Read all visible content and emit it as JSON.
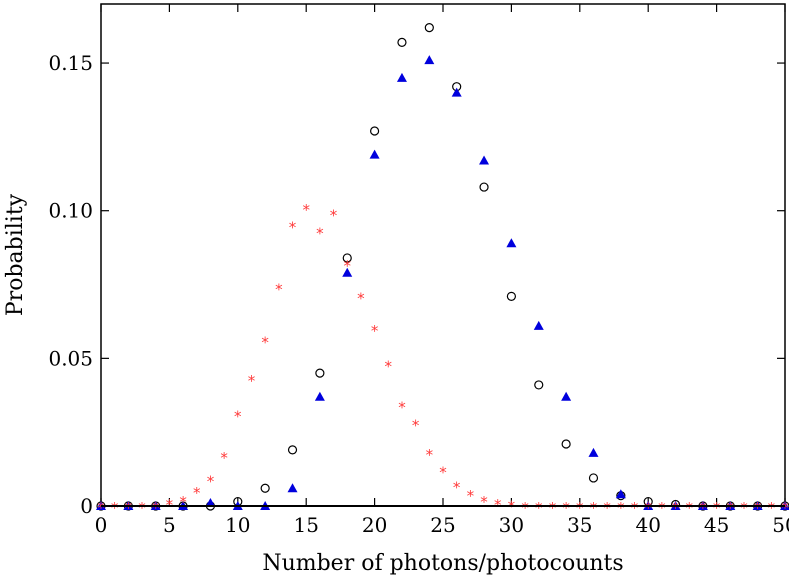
{
  "chart_data": {
    "type": "scatter",
    "title": "",
    "xlabel": "Number of photons/photocounts",
    "ylabel": "Probability",
    "xlim": [
      0,
      50
    ],
    "ylim": [
      0,
      0.17
    ],
    "xticks": [
      0,
      5,
      10,
      15,
      20,
      25,
      30,
      35,
      40,
      45,
      50
    ],
    "xtick_labels": [
      "0",
      "5",
      "10",
      "15",
      "20",
      "25",
      "30",
      "35",
      "40",
      "45",
      "50"
    ],
    "yticks": [
      0,
      0.05,
      0.1,
      0.15
    ],
    "ytick_labels": [
      "0",
      "0.05",
      "0.10",
      "0.15"
    ],
    "grid": false,
    "legend": "none",
    "series": [
      {
        "marker": "open-circle",
        "color": "#000000",
        "x": [
          0,
          2,
          4,
          6,
          8,
          10,
          12,
          14,
          16,
          18,
          20,
          22,
          24,
          26,
          28,
          30,
          32,
          34,
          36,
          38,
          40,
          42,
          44,
          46,
          48,
          50
        ],
        "y": [
          0,
          0,
          0,
          0,
          0,
          0.0015,
          0.006,
          0.019,
          0.045,
          0.084,
          0.127,
          0.157,
          0.162,
          0.142,
          0.108,
          0.071,
          0.041,
          0.021,
          0.0095,
          0.0035,
          0.0015,
          0.0005,
          0,
          0,
          0,
          0
        ]
      },
      {
        "marker": "filled-triangle",
        "color": "#0000dd",
        "x": [
          0,
          2,
          4,
          6,
          8,
          10,
          12,
          14,
          16,
          18,
          20,
          22,
          24,
          26,
          28,
          30,
          32,
          34,
          36,
          38,
          40,
          42,
          44,
          46,
          48,
          50
        ],
        "y": [
          0,
          0,
          0,
          0,
          0.001,
          0,
          0,
          0.006,
          0.037,
          0.079,
          0.119,
          0.145,
          0.151,
          0.14,
          0.117,
          0.089,
          0.061,
          0.037,
          0.018,
          0.004,
          0,
          0,
          0,
          0,
          0,
          0
        ]
      },
      {
        "marker": "asterisk",
        "color": "#ff3b3b",
        "x": [
          0,
          1,
          2,
          3,
          4,
          5,
          6,
          7,
          8,
          9,
          10,
          11,
          12,
          13,
          14,
          15,
          16,
          17,
          18,
          19,
          20,
          21,
          22,
          23,
          24,
          25,
          26,
          27,
          28,
          29,
          30,
          31,
          32,
          33,
          34,
          35,
          36,
          37,
          38,
          39,
          40,
          41,
          42,
          43,
          44,
          45,
          46,
          47,
          48,
          49,
          50
        ],
        "y": [
          0,
          0,
          0,
          0,
          0,
          0.001,
          0.002,
          0.005,
          0.009,
          0.017,
          0.031,
          0.043,
          0.056,
          0.074,
          0.095,
          0.101,
          0.093,
          0.099,
          0.082,
          0.071,
          0.06,
          0.048,
          0.034,
          0.028,
          0.018,
          0.012,
          0.007,
          0.004,
          0.002,
          0.001,
          0.0005,
          0,
          0,
          0,
          0,
          0,
          0,
          0,
          0,
          0,
          0,
          0,
          0,
          0,
          0,
          0,
          0,
          0,
          0,
          0,
          0
        ]
      }
    ]
  }
}
